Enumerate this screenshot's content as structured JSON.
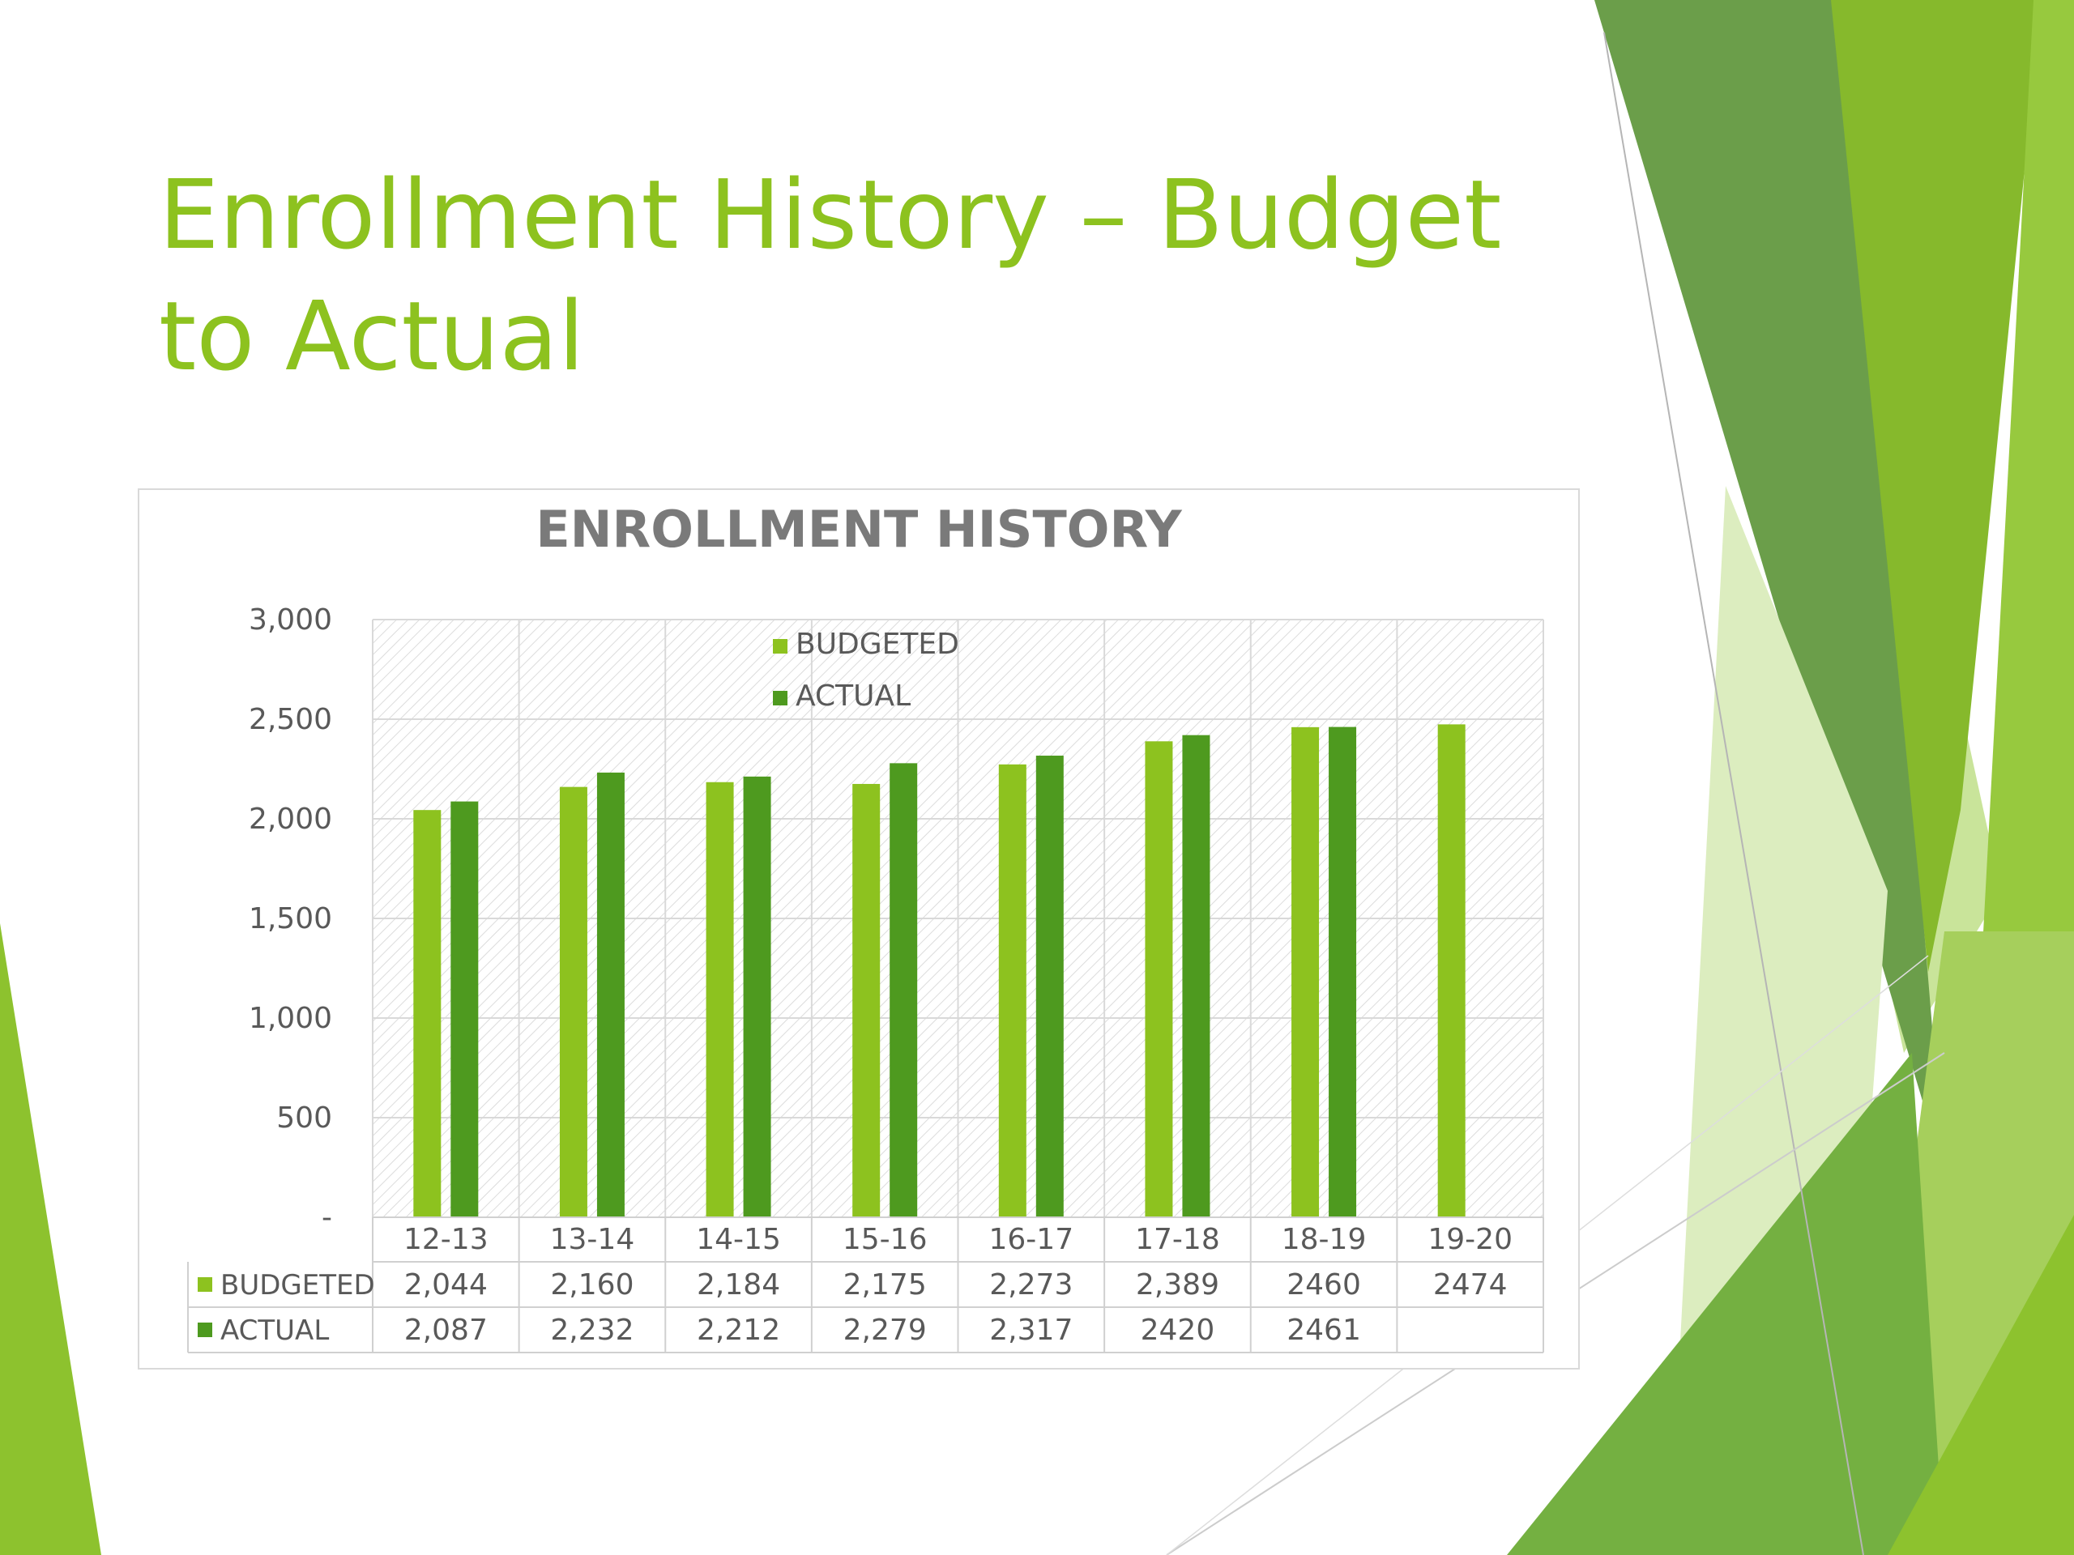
{
  "slide": {
    "title": "Enrollment History – Budget to Actual"
  },
  "colors": {
    "budgeted": "#8dc21f",
    "actual": "#4e9a1f",
    "title": "#8dc21f",
    "chart_title": "#7a7a7a"
  },
  "chart_data": {
    "type": "bar",
    "title": "ENROLLMENT HISTORY",
    "categories": [
      "12-13",
      "13-14",
      "14-15",
      "15-16",
      "16-17",
      "17-18",
      "18-19",
      "19-20"
    ],
    "series": [
      {
        "name": "BUDGETED",
        "values": [
          2044,
          2160,
          2184,
          2175,
          2273,
          2389,
          2460,
          2474
        ],
        "labels": [
          "2,044",
          "2,160",
          "2,184",
          "2,175",
          "2,273",
          "2,389",
          "2460",
          "2474"
        ]
      },
      {
        "name": "ACTUAL",
        "values": [
          2087,
          2232,
          2212,
          2279,
          2317,
          2420,
          2461,
          null
        ],
        "labels": [
          "2,087",
          "2,232",
          "2,212",
          "2,279",
          "2,317",
          "2420",
          "2461",
          ""
        ]
      }
    ],
    "yticks": [
      "-",
      "500",
      "1,000",
      "1,500",
      "2,000",
      "2,500",
      "3,000"
    ],
    "ylim": [
      0,
      3000
    ],
    "grid": true,
    "legend": "top-center",
    "data_table": true
  }
}
